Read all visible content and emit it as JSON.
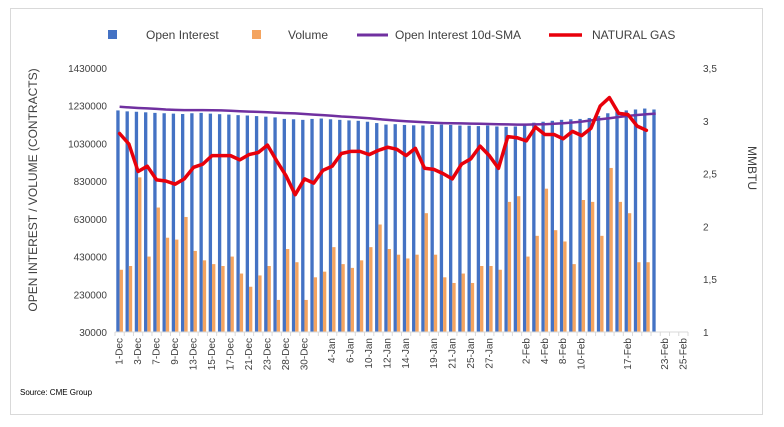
{
  "chart_data": {
    "type": "bar",
    "source": "Source: CME Group",
    "legend": {
      "placement": "top",
      "items": [
        "Open Interest",
        "Volume",
        "Open Interest 10d-SMA",
        "NATURAL GAS"
      ]
    },
    "ylabel_left": "OPEN INTEREST / VOLUME (CONTRACTS)",
    "ylabel_right": "MMBTU",
    "left_ticks": [
      "1430000",
      "1230000",
      "1030000",
      "830000",
      "630000",
      "430000",
      "230000",
      "30000"
    ],
    "right_ticks": [
      "3,5",
      "3",
      "2,5",
      "2",
      "1,5",
      "1"
    ],
    "ylim_left": [
      30000,
      1430000
    ],
    "ylim_right": [
      1,
      3.5
    ],
    "colors": {
      "open_interest": "#4472c4",
      "volume": "#f4a460",
      "sma": "#7030a0",
      "price": "#e8000b"
    },
    "categories": [
      "1-Dec",
      "2-Dec",
      "3-Dec",
      "6-Dec",
      "7-Dec",
      "8-Dec",
      "9-Dec",
      "10-Dec",
      "13-Dec",
      "14-Dec",
      "15-Dec",
      "16-Dec",
      "17-Dec",
      "20-Dec",
      "21-Dec",
      "22-Dec",
      "23-Dec",
      "27-Dec",
      "28-Dec",
      "29-Dec",
      "30-Dec",
      "31-Dec",
      "3-Jan",
      "4-Jan",
      "5-Jan",
      "6-Jan",
      "7-Jan",
      "10-Jan",
      "11-Jan",
      "12-Jan",
      "13-Jan",
      "14-Jan",
      "17-Jan",
      "18-Jan",
      "19-Jan",
      "20-Jan",
      "21-Jan",
      "24-Jan",
      "25-Jan",
      "26-Jan",
      "27-Jan",
      "28-Jan",
      "31-Jan",
      "1-Feb",
      "2-Feb",
      "3-Feb",
      "4-Feb",
      "7-Feb",
      "8-Feb",
      "9-Feb",
      "10-Feb",
      "11-Feb",
      "14-Feb",
      "15-Feb",
      "16-Feb",
      "17-Feb",
      "18-Feb",
      "21-Feb",
      "22-Feb",
      "23-Feb",
      "24-Feb",
      "25-Feb"
    ],
    "x_tick_labels": [
      "1-Dec",
      "3-Dec",
      "7-Dec",
      "9-Dec",
      "13-Dec",
      "15-Dec",
      "17-Dec",
      "21-Dec",
      "23-Dec",
      "28-Dec",
      "30-Dec",
      "4-Jan",
      "6-Jan",
      "10-Jan",
      "12-Jan",
      "14-Jan",
      "19-Jan",
      "21-Jan",
      "25-Jan",
      "27-Jan",
      "29-Jan",
      "2-Feb",
      "4-Feb",
      "8-Feb",
      "10-Feb",
      "12-Feb",
      "17-Feb",
      "19-Feb",
      "23-Feb",
      "25-Feb"
    ],
    "series": [
      {
        "name": "Open Interest",
        "kind": "bar",
        "axis": "left",
        "values": [
          1205000,
          1200000,
          1198000,
          1195000,
          1192000,
          1190000,
          1188000,
          1186000,
          1190000,
          1192000,
          1188000,
          1185000,
          1183000,
          1180000,
          1178000,
          1175000,
          1172000,
          1168000,
          1160000,
          1158000,
          1155000,
          1160000,
          1162000,
          1158000,
          1155000,
          1152000,
          1150000,
          1145000,
          1138000,
          1130000,
          1132000,
          1128000,
          1126000,
          1125000,
          1128000,
          1130000,
          1128000,
          1125000,
          1124000,
          1122000,
          1125000,
          1120000,
          1118000,
          1120000,
          1135000,
          1140000,
          1145000,
          1150000,
          1155000,
          1158000,
          1160000,
          1165000,
          1175000,
          1190000,
          1200000,
          1205000,
          1210000,
          1215000,
          1210000,
          null,
          null,
          null
        ]
      },
      {
        "name": "Volume",
        "kind": "bar",
        "axis": "left",
        "values": [
          360000,
          380000,
          850000,
          430000,
          690000,
          530000,
          520000,
          640000,
          460000,
          410000,
          390000,
          380000,
          430000,
          340000,
          270000,
          330000,
          380000,
          200000,
          470000,
          400000,
          200000,
          320000,
          350000,
          480000,
          390000,
          370000,
          410000,
          480000,
          600000,
          470000,
          440000,
          420000,
          440000,
          660000,
          440000,
          320000,
          290000,
          340000,
          290000,
          380000,
          380000,
          360000,
          720000,
          750000,
          430000,
          540000,
          790000,
          570000,
          510000,
          390000,
          730000,
          720000,
          540000,
          900000,
          720000,
          660000,
          400000,
          400000,
          null,
          null,
          null,
          null
        ]
      },
      {
        "name": "Open Interest 10d-SMA",
        "kind": "line",
        "axis": "left",
        "values": [
          1225000,
          1221000,
          1218000,
          1216000,
          1213000,
          1210000,
          1208000,
          1207000,
          1207000,
          1207000,
          1206000,
          1205000,
          1203000,
          1201000,
          1199000,
          1197000,
          1195000,
          1193000,
          1191000,
          1189000,
          1186000,
          1183000,
          1180000,
          1177000,
          1173000,
          1170000,
          1167000,
          1163000,
          1159000,
          1155000,
          1151000,
          1148000,
          1145000,
          1142000,
          1140000,
          1138000,
          1137000,
          1136000,
          1135000,
          1134000,
          1133000,
          1132000,
          1131000,
          1130000,
          1130000,
          1131000,
          1132000,
          1134000,
          1137000,
          1141000,
          1146000,
          1152000,
          1158000,
          1164000,
          1170000,
          1176000,
          1181000,
          1185000,
          1188000,
          null,
          null,
          null
        ]
      },
      {
        "name": "NATURAL GAS",
        "kind": "line",
        "axis": "right",
        "values": [
          2.88,
          2.78,
          2.52,
          2.57,
          2.44,
          2.43,
          2.4,
          2.45,
          2.56,
          2.59,
          2.67,
          2.67,
          2.67,
          2.63,
          2.68,
          2.7,
          2.77,
          2.62,
          2.48,
          2.3,
          2.45,
          2.41,
          2.53,
          2.57,
          2.69,
          2.71,
          2.71,
          2.68,
          2.72,
          2.75,
          2.73,
          2.67,
          2.74,
          2.55,
          2.54,
          2.5,
          2.45,
          2.59,
          2.64,
          2.76,
          2.67,
          2.55,
          2.85,
          2.84,
          2.81,
          2.94,
          2.87,
          2.87,
          2.83,
          2.9,
          2.86,
          2.93,
          3.14,
          3.22,
          3.07,
          3.06,
          2.95,
          2.91,
          null,
          null,
          null,
          null
        ]
      }
    ]
  }
}
